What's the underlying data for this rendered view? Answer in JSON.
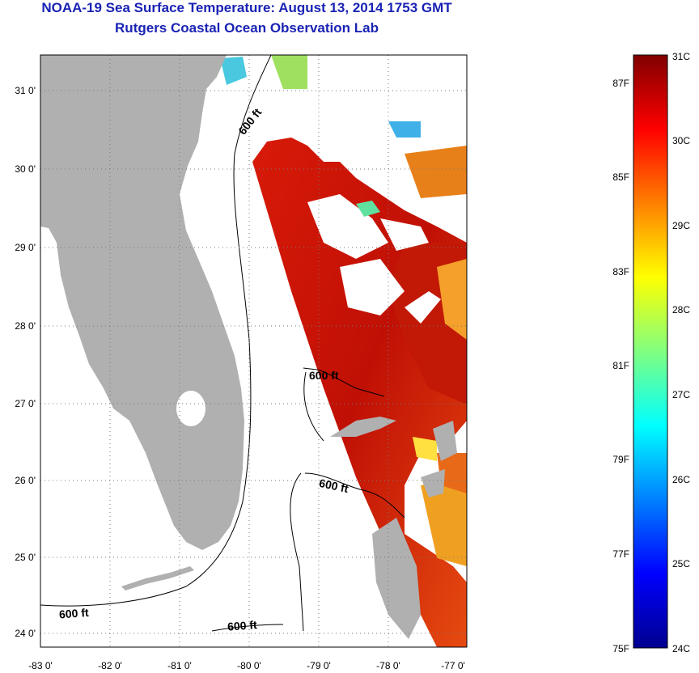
{
  "header": {
    "title": "NOAA-19 Sea Surface Temperature:  August 13, 2014 1753 GMT",
    "subtitle": "Rutgers Coastal Ocean Observation Lab"
  },
  "map": {
    "longitude_labels": [
      "-83 0'",
      "-82 0'",
      "-81 0'",
      "-80 0'",
      "-79 0'",
      "-78 0'",
      "-77 0'"
    ],
    "latitude_labels": [
      "31 0'",
      "30 0'",
      "29 0'",
      "28 0'",
      "27 0'",
      "26 0'",
      "25 0'",
      "24 0'"
    ],
    "contour_labels": [
      "600 ft",
      "600 ft",
      "600 ft",
      "600 ft",
      "600 ft"
    ],
    "land_color": "#b0b0b0",
    "no_data_color": "#ffffff"
  },
  "colorbar": {
    "celsius_labels": [
      "31C",
      "30C",
      "29C",
      "28C",
      "27C",
      "26C",
      "25C",
      "24C"
    ],
    "fahrenheit_labels": [
      "87F",
      "85F",
      "83F",
      "81F",
      "79F",
      "77F",
      "75F"
    ],
    "colors": [
      "#00008f",
      "#0000ff",
      "#0080ff",
      "#00ffff",
      "#80ff80",
      "#ffff00",
      "#ff8000",
      "#ff0000",
      "#800000"
    ]
  }
}
